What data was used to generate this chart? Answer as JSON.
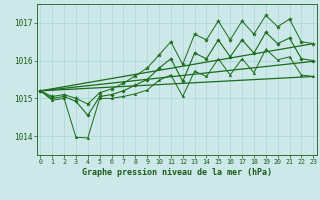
{
  "title": "Graphe pression niveau de la mer (hPa)",
  "hours": [
    0,
    1,
    2,
    3,
    4,
    5,
    6,
    7,
    8,
    9,
    10,
    11,
    12,
    13,
    14,
    15,
    16,
    17,
    18,
    19,
    20,
    21,
    22,
    23
  ],
  "upper_line": [
    1015.2,
    1015.05,
    1015.1,
    1015.0,
    1014.85,
    1015.15,
    1015.25,
    1015.4,
    1015.6,
    1015.8,
    1016.15,
    1016.5,
    1015.9,
    1016.7,
    1016.55,
    1017.05,
    1016.55,
    1017.05,
    1016.7,
    1017.2,
    1016.9,
    1017.1,
    1016.5,
    1016.45
  ],
  "mid_line": [
    1015.2,
    1015.0,
    1015.05,
    1014.92,
    1014.55,
    1015.05,
    1015.1,
    1015.2,
    1015.35,
    1015.5,
    1015.8,
    1016.05,
    1015.45,
    1016.2,
    1016.05,
    1016.55,
    1016.1,
    1016.55,
    1016.2,
    1016.75,
    1016.45,
    1016.6,
    1016.05,
    1016.0
  ],
  "lower_line": [
    1015.2,
    1014.95,
    1015.0,
    1013.97,
    1013.95,
    1015.0,
    1015.0,
    1015.05,
    1015.12,
    1015.22,
    1015.48,
    1015.62,
    1015.05,
    1015.72,
    1015.58,
    1016.05,
    1015.62,
    1016.05,
    1015.68,
    1016.3,
    1016.02,
    1016.1,
    1015.62,
    1015.58
  ],
  "trend_upper": [
    1015.2,
    1016.45
  ],
  "trend_mid": [
    1015.2,
    1015.98
  ],
  "trend_lower": [
    1015.2,
    1015.58
  ],
  "ylim": [
    1013.5,
    1017.5
  ],
  "yticks": [
    1014,
    1015,
    1016,
    1017
  ],
  "xlim": [
    -0.3,
    23.3
  ],
  "bg_color": "#cce8e8",
  "grid_color": "#aad4d4",
  "line_color": "#1a6b1a",
  "tick_color": "#1a5c1a",
  "title_color": "#1a5c1a"
}
